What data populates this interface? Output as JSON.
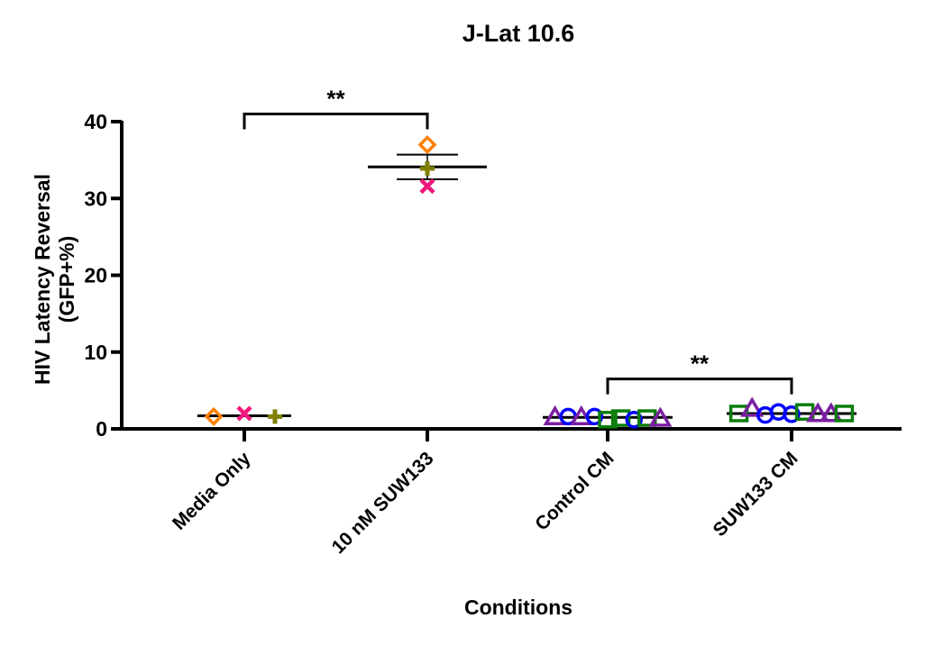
{
  "chart_data": {
    "type": "scatter",
    "title": "J-Lat 10.6",
    "xlabel": "Conditions",
    "ylabel_lines": [
      "HIV Latency Reversal",
      "(GFP+%)"
    ],
    "ylim": [
      0,
      40
    ],
    "yticks": [
      "0",
      "10",
      "20",
      "30",
      "40"
    ],
    "categories": [
      "Media Only",
      "10 nM SUW133",
      "Control CM",
      "SUW133 CM"
    ],
    "grid": false,
    "groups": [
      {
        "category": "Media Only",
        "mean": 1.7,
        "error": null,
        "points": [
          {
            "marker": "diamond",
            "color": "#ff7f00",
            "y": 1.6,
            "offset": -1
          },
          {
            "marker": "x",
            "color": "#f0187c",
            "y": 2.0,
            "offset": 0
          },
          {
            "marker": "plus",
            "color": "#808000",
            "y": 1.6,
            "offset": 1
          }
        ]
      },
      {
        "category": "10 nM SUW133",
        "mean": 34.1,
        "error": [
          32.5,
          35.7
        ],
        "points": [
          {
            "marker": "diamond",
            "color": "#ff7f00",
            "y": 37.0,
            "offset": 0
          },
          {
            "marker": "plus",
            "color": "#808000",
            "y": 33.9,
            "offset": 0
          },
          {
            "marker": "x",
            "color": "#f0187c",
            "y": 31.6,
            "offset": 0
          }
        ]
      },
      {
        "category": "Control CM",
        "mean": 1.5,
        "error": null,
        "points": [
          {
            "marker": "triangle",
            "color": "#7b1fa2",
            "y": 1.5,
            "offset": -4
          },
          {
            "marker": "circle",
            "color": "#0000ff",
            "y": 1.6,
            "offset": -3
          },
          {
            "marker": "triangle",
            "color": "#7b1fa2",
            "y": 1.5,
            "offset": -2
          },
          {
            "marker": "circle",
            "color": "#0000ff",
            "y": 1.6,
            "offset": -1
          },
          {
            "marker": "square",
            "color": "#0a7d0a",
            "y": 1.2,
            "offset": 0
          },
          {
            "marker": "square",
            "color": "#0a7d0a",
            "y": 1.4,
            "offset": 1
          },
          {
            "marker": "circle",
            "color": "#0000ff",
            "y": 1.2,
            "offset": 2
          },
          {
            "marker": "square",
            "color": "#0a7d0a",
            "y": 1.4,
            "offset": 3
          },
          {
            "marker": "triangle",
            "color": "#7b1fa2",
            "y": 1.3,
            "offset": 4
          }
        ]
      },
      {
        "category": "SUW133 CM",
        "mean": 2.0,
        "error": null,
        "points": [
          {
            "marker": "square",
            "color": "#0a7d0a",
            "y": 2.0,
            "offset": -4
          },
          {
            "marker": "triangle",
            "color": "#7b1fa2",
            "y": 2.6,
            "offset": -3
          },
          {
            "marker": "circle",
            "color": "#0000ff",
            "y": 1.8,
            "offset": -2
          },
          {
            "marker": "circle",
            "color": "#0000ff",
            "y": 2.2,
            "offset": -1
          },
          {
            "marker": "circle",
            "color": "#0000ff",
            "y": 1.9,
            "offset": 0
          },
          {
            "marker": "square",
            "color": "#0a7d0a",
            "y": 2.2,
            "offset": 1
          },
          {
            "marker": "triangle",
            "color": "#7b1fa2",
            "y": 1.9,
            "offset": 2
          },
          {
            "marker": "triangle",
            "color": "#7b1fa2",
            "y": 1.9,
            "offset": 3
          },
          {
            "marker": "square",
            "color": "#0a7d0a",
            "y": 2.0,
            "offset": 4
          }
        ]
      }
    ],
    "significance": [
      {
        "from": "Media Only",
        "to": "10 nM SUW133",
        "label": "**",
        "y": 41
      },
      {
        "from": "Control CM",
        "to": "SUW133 CM",
        "label": "**",
        "y": 6.5
      }
    ]
  }
}
